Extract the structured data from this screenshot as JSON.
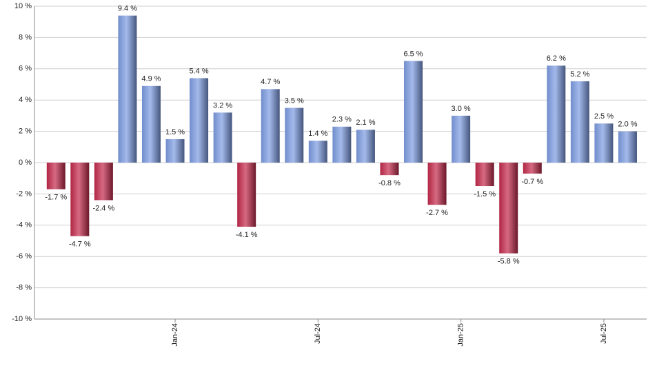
{
  "chart_data": {
    "type": "bar",
    "categories": [
      null,
      null,
      null,
      null,
      null,
      "Jan-24",
      null,
      null,
      null,
      null,
      null,
      "Jul-24",
      null,
      null,
      null,
      null,
      null,
      "Jan-25",
      null,
      null,
      null,
      null,
      null,
      "Jul-25",
      null
    ],
    "values": [
      -1.7,
      -4.7,
      -2.4,
      9.4,
      4.9,
      1.5,
      5.4,
      3.2,
      -4.1,
      4.7,
      3.5,
      1.4,
      2.3,
      2.1,
      -0.8,
      6.5,
      -2.7,
      3.0,
      -1.5,
      -5.8,
      -0.7,
      6.2,
      5.2,
      2.5,
      2.0
    ],
    "value_labels": [
      "-1.7 %",
      "-4.7 %",
      "-2.4 %",
      "9.4 %",
      "4.9 %",
      "1.5 %",
      "5.4 %",
      "3.2 %",
      "-4.1 %",
      "4.7 %",
      "3.5 %",
      "1.4 %",
      "2.3 %",
      "2.1 %",
      "-0.8 %",
      "6.5 %",
      "-2.7 %",
      "3.0 %",
      "-1.5 %",
      "-5.8 %",
      "-0.7 %",
      "6.2 %",
      "5.2 %",
      "2.5 %",
      "2.0 %"
    ],
    "colors": {
      "positive": "#7d9de3",
      "negative": "#c42a4c"
    },
    "ylim": [
      -10,
      10
    ],
    "yticks": [
      {
        "value": -10,
        "label": "-10 %"
      },
      {
        "value": -8,
        "label": "-8 %"
      },
      {
        "value": -6,
        "label": "-6 %"
      },
      {
        "value": -4,
        "label": "-4 %"
      },
      {
        "value": -2,
        "label": "-2 %"
      },
      {
        "value": 0,
        "label": "0 %"
      },
      {
        "value": 2,
        "label": "2 %"
      },
      {
        "value": 4,
        "label": "4 %"
      },
      {
        "value": 6,
        "label": "6 %"
      },
      {
        "value": 8,
        "label": "8 %"
      },
      {
        "value": 10,
        "label": "10 %"
      }
    ],
    "grid": true
  }
}
